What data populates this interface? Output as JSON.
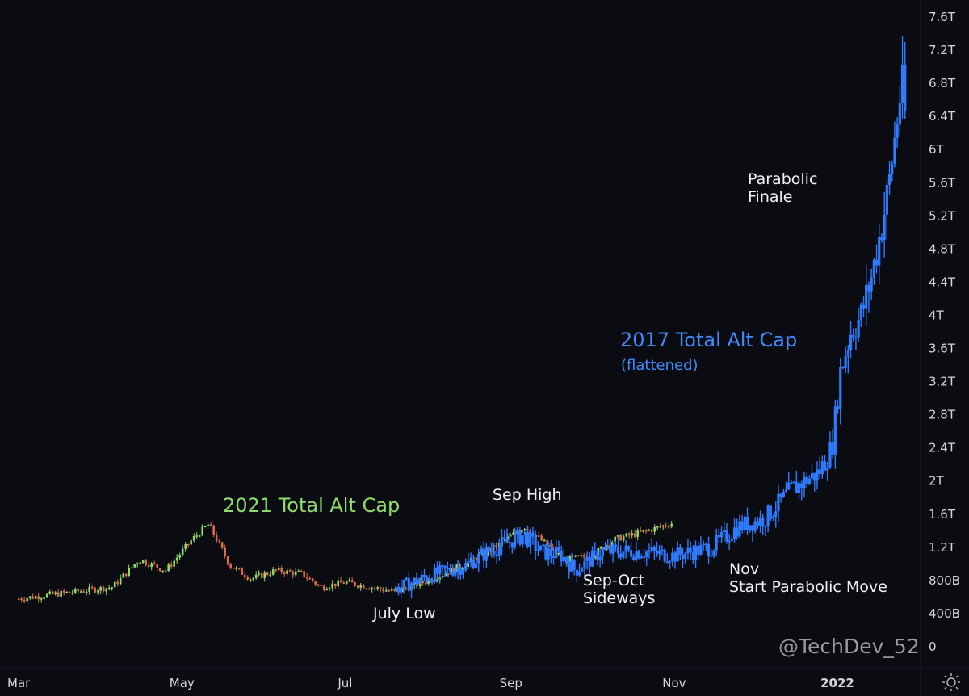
{
  "chart_data": {
    "type": "candlestick",
    "y_axis": {
      "ticks": [
        "0",
        "400B",
        "800B",
        "1.2T",
        "1.6T",
        "2T",
        "2.4T",
        "2.8T",
        "3.2T",
        "3.6T",
        "4T",
        "4.4T",
        "4.8T",
        "5.2T",
        "5.6T",
        "6T",
        "6.4T",
        "6.8T",
        "7.2T",
        "7.6T"
      ],
      "ylim": [
        0,
        7.8
      ]
    },
    "x_axis": {
      "ticks": [
        "Mar",
        "May",
        "Jul",
        "Sep",
        "Nov",
        "2022"
      ]
    },
    "grid": false,
    "series": [
      {
        "name": "2021 Total Alt Cap",
        "color": "#8fdc6a",
        "knots": [
          [
            "Mar",
            0.58
          ],
          [
            "2021-03-21",
            0.66
          ],
          [
            "2021-04-05",
            0.72
          ],
          [
            "2021-04-15",
            1.05
          ],
          [
            "2021-04-25",
            0.92
          ],
          [
            "2021-05-05",
            1.3
          ],
          [
            "2021-05-11",
            1.48
          ],
          [
            "2021-05-19",
            0.98
          ],
          [
            "2021-05-27",
            0.82
          ],
          [
            "2021-06-05",
            0.92
          ],
          [
            "2021-06-15",
            0.88
          ],
          [
            "2021-06-22",
            0.72
          ],
          [
            "2021-07-01",
            0.78
          ],
          [
            "2021-07-20",
            0.66
          ],
          [
            "2021-08-01",
            0.8
          ],
          [
            "2021-08-15",
            1.0
          ],
          [
            "2021-08-25",
            1.18
          ],
          [
            "2021-09-06",
            1.45
          ],
          [
            "2021-09-10",
            1.35
          ],
          [
            "2021-09-21",
            1.05
          ],
          [
            "2021-10-01",
            1.1
          ],
          [
            "2021-10-10",
            1.3
          ],
          [
            "2021-10-20",
            1.38
          ],
          [
            "2021-11-01",
            1.5
          ]
        ]
      },
      {
        "name": "2017 Total Alt Cap (flattened)",
        "color": "#2f7bff",
        "knots": [
          [
            "2021-07-20",
            0.7
          ],
          [
            "2021-08-01",
            0.85
          ],
          [
            "2021-08-15",
            0.98
          ],
          [
            "2021-08-25",
            1.18
          ],
          [
            "2021-09-06",
            1.35
          ],
          [
            "2021-09-12",
            1.15
          ],
          [
            "2021-09-20",
            1.1
          ],
          [
            "2021-09-25",
            0.92
          ],
          [
            "2021-10-05",
            1.15
          ],
          [
            "2021-10-20",
            1.15
          ],
          [
            "2021-11-01",
            1.1
          ],
          [
            "2021-11-15",
            1.2
          ],
          [
            "2021-11-25",
            1.45
          ],
          [
            "2021-12-05",
            1.55
          ],
          [
            "2021-12-15",
            1.9
          ],
          [
            "2021-12-25",
            2.1
          ],
          [
            "2021-12-30",
            2.4
          ],
          [
            "2022-01-02",
            3.3
          ],
          [
            "2022-01-06",
            3.8
          ],
          [
            "2022-01-10",
            4.0
          ],
          [
            "2022-01-14",
            4.5
          ],
          [
            "2022-01-20",
            5.5
          ],
          [
            "2022-01-25",
            6.8
          ],
          [
            "2022-01-27",
            6.2
          ]
        ]
      }
    ],
    "annotations": [
      {
        "text": "2021 Total Alt Cap",
        "style": "green"
      },
      {
        "text": "Sep High",
        "style": "white"
      },
      {
        "text": "July Low",
        "style": "white"
      },
      {
        "text": "Sep-Oct\nSideways",
        "style": "white"
      },
      {
        "text": "Nov\nStart Parabolic Move",
        "style": "white"
      },
      {
        "text": "2017 Total Alt Cap",
        "style": "blue"
      },
      {
        "text": "(flattened)",
        "style": "blue-sm"
      },
      {
        "text": "Parabolic\nFinale",
        "style": "white"
      }
    ],
    "watermark": "@TechDev_52"
  }
}
